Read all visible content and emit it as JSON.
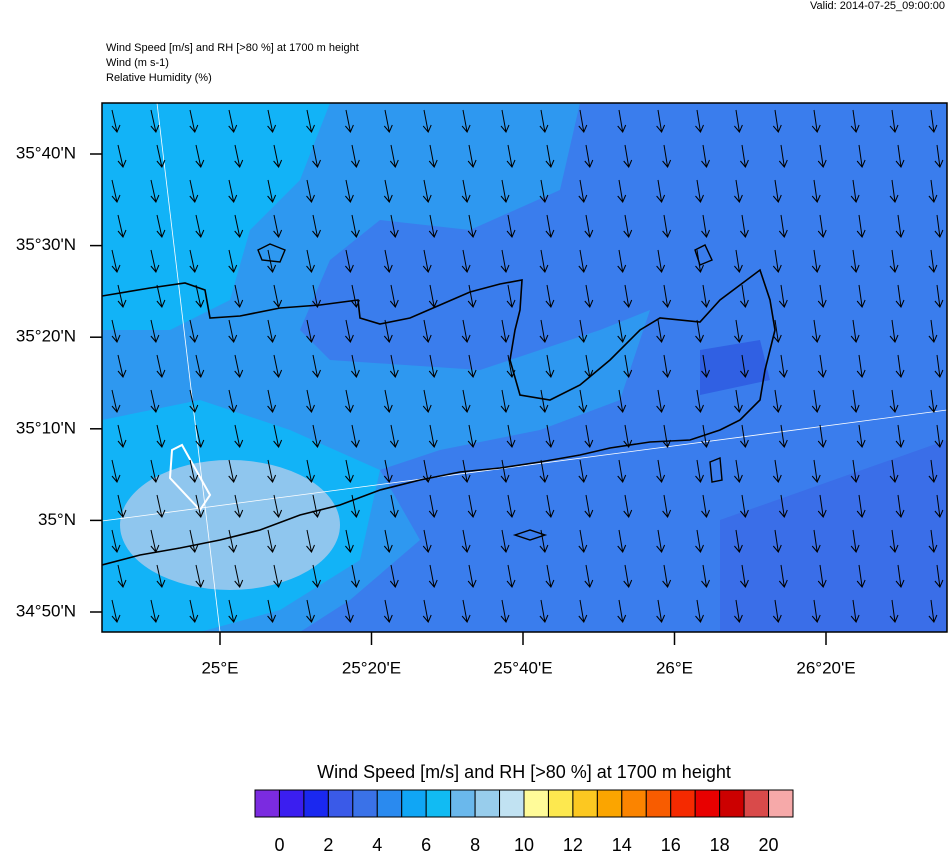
{
  "valid": "Valid: 2014-07-25_09:00:00",
  "header": {
    "lines": [
      "Wind Speed [m/s] and RH [>80 %] at 1700 m height",
      "Wind   (m s-1)",
      "Relative Humidity   (%)"
    ]
  },
  "map": {
    "lat_labels": [
      "35°40'N",
      "35°30'N",
      "35°20'N",
      "35°10'N",
      "35°N",
      "34°50'N"
    ],
    "lon_labels": [
      "25°E",
      "25°20'E",
      "25°40'E",
      "26°E",
      "26°20'E"
    ]
  },
  "colorbar": {
    "title": "Wind Speed [m/s] and RH [>80 %] at 1700 m height",
    "colors": [
      "#7b2be0",
      "#3b1ef0",
      "#1a28f0",
      "#3a5ae8",
      "#3a72e8",
      "#2a8aef",
      "#10a6f5",
      "#11bbf3",
      "#6ab8ec",
      "#98cdec",
      "#c1e2f2",
      "#fffb99",
      "#fde84f",
      "#fcc821",
      "#fba500",
      "#fb8400",
      "#f85c00",
      "#f52a00",
      "#e80000",
      "#cc0000",
      "#d94a4a",
      "#f6a9a9"
    ],
    "ticks": [
      0,
      2,
      4,
      6,
      8,
      10,
      12,
      14,
      16,
      18,
      20
    ]
  }
}
